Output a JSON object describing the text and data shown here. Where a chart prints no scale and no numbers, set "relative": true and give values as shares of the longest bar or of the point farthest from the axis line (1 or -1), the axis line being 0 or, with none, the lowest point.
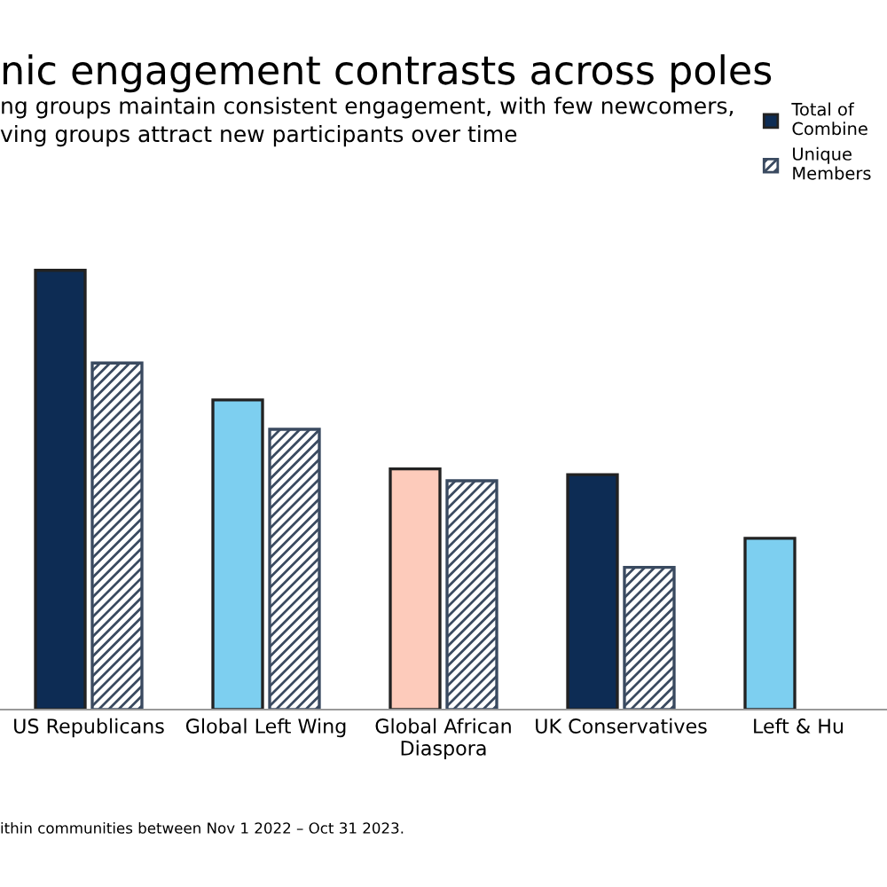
{
  "chart_data": {
    "type": "bar",
    "title": "nic engagement contrasts across poles",
    "subtitle": "ng groups maintain consistent engagement, with few newcomers,\nving groups attract new participants over time",
    "categories": [
      "US Republicans",
      "Global Left Wing",
      "Global African\nDiaspora",
      "UK Conservatives",
      "Left & Hu"
    ],
    "relative": true,
    "series": [
      {
        "name": "Total of\nCombine",
        "color": "#0d2c54",
        "colors": [
          "#0d2c54",
          "#7dcff0",
          "#fdcbbb",
          "#0d2c54",
          "#7dcff0"
        ],
        "values": [
          1,
          0.705,
          0.548,
          0.535,
          0.39
        ]
      },
      {
        "name": "Unique\nMembers",
        "color": "#3a4a60",
        "values": [
          0.789,
          0.638,
          0.521,
          0.324,
          null
        ]
      }
    ],
    "legend": "top right",
    "grid": false,
    "tick_labels": "x",
    "annotations": [
      "ithin communities between Nov 1 2022 – Oct 31 2023."
    ]
  }
}
